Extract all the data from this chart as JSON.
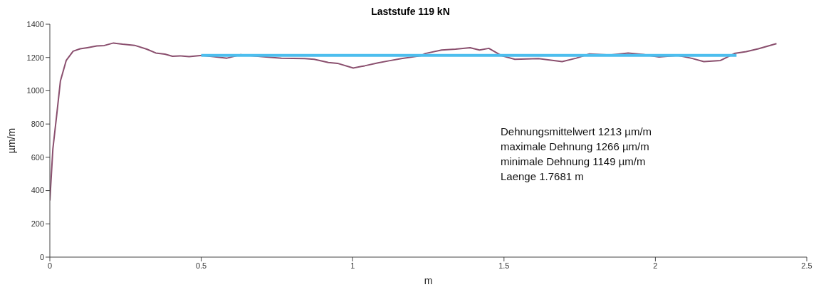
{
  "chart_data": {
    "type": "line",
    "title": "Laststufe 119 kN",
    "xlabel": "m",
    "ylabel": "µm/m",
    "xlim": [
      0,
      2.5
    ],
    "xticks": [
      0,
      0.5,
      1,
      1.5,
      2,
      2.5
    ],
    "ylim": [
      0,
      1400
    ],
    "yticks": [
      0,
      200,
      400,
      600,
      800,
      1000,
      1200,
      1400
    ],
    "marker": "none",
    "line_style": "solid",
    "series": [
      {
        "color": "#8a4f6e",
        "x": [
          0,
          0.01,
          0.023,
          0.035,
          0.054,
          0.077,
          0.1,
          0.124,
          0.155,
          0.18,
          0.21,
          0.24,
          0.28,
          0.32,
          0.35,
          0.38,
          0.405,
          0.43,
          0.46,
          0.503,
          0.54,
          0.585,
          0.63,
          0.7,
          0.765,
          0.842,
          0.873,
          0.92,
          0.95,
          1.002,
          1.04,
          1.084,
          1.12,
          1.161,
          1.224,
          1.24,
          1.294,
          1.34,
          1.388,
          1.419,
          1.45,
          1.493,
          1.536,
          1.614,
          1.692,
          1.739,
          1.782,
          1.85,
          1.91,
          1.96,
          2.012,
          2.074,
          2.12,
          2.16,
          2.215,
          2.261,
          2.3,
          2.34,
          2.4
        ],
        "values": [
          340,
          650,
          860,
          1060,
          1182,
          1238,
          1252,
          1259,
          1269,
          1272,
          1287,
          1280,
          1273,
          1250,
          1227,
          1220,
          1207,
          1210,
          1205,
          1213,
          1205,
          1196,
          1217,
          1205,
          1196,
          1193,
          1189,
          1170,
          1165,
          1137,
          1150,
          1168,
          1180,
          1193,
          1210,
          1224,
          1245,
          1250,
          1259,
          1245,
          1255,
          1210,
          1189,
          1193,
          1175,
          1196,
          1221,
          1215,
          1227,
          1218,
          1203,
          1213,
          1195,
          1175,
          1182,
          1224,
          1235,
          1252,
          1283
        ]
      },
      {
        "color": "#4dbeee",
        "x": [
          0.5,
          2.268
        ],
        "values": [
          1213,
          1213
        ]
      }
    ],
    "annotations": [
      "Dehnungsmittelwert 1213 µm/m",
      "maximale Dehnung 1266 µm/m",
      "minimale Dehnung 1149 µm/m",
      "Laenge 1.7681 m"
    ]
  }
}
